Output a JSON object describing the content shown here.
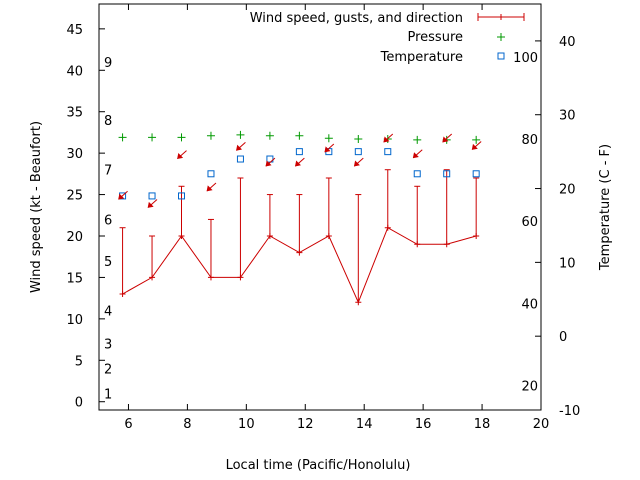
{
  "chart_data": {
    "type": "line",
    "xlabel": "Local time (Pacific/Honolulu)",
    "ylabel_left": "Wind speed (kt - Beaufort)",
    "ylabel_right": "Temperature (C - F)",
    "xlim": [
      5,
      20
    ],
    "xticks": [
      "6",
      "8",
      "10",
      "12",
      "14",
      "16",
      "18",
      "20"
    ],
    "ylim_left": [
      -1,
      48
    ],
    "yticks_left": [
      "0",
      "5",
      "10",
      "15",
      "20",
      "25",
      "30",
      "35",
      "40",
      "45"
    ],
    "ylim_right_c": [
      -10,
      45
    ],
    "yticks_right_c": [
      "-10",
      "0",
      "10",
      "20",
      "30",
      "40"
    ],
    "fahrenheit_labels": [
      {
        "label": "20",
        "c": -6.7
      },
      {
        "label": "40",
        "c": 4.4
      },
      {
        "label": "60",
        "c": 15.6
      },
      {
        "label": "80",
        "c": 26.7
      },
      {
        "label": "100",
        "c": 37.8
      }
    ],
    "beaufort_labels": [
      {
        "label": "1",
        "kt": 1
      },
      {
        "label": "2",
        "kt": 4
      },
      {
        "label": "3",
        "kt": 7
      },
      {
        "label": "4",
        "kt": 11
      },
      {
        "label": "5",
        "kt": 17
      },
      {
        "label": "6",
        "kt": 22
      },
      {
        "label": "7",
        "kt": 28
      },
      {
        "label": "8",
        "kt": 34
      },
      {
        "label": "9",
        "kt": 41
      }
    ],
    "legend": [
      {
        "name": "Wind speed, gusts, and direction",
        "color": "#cc0000",
        "marker": "errorbar"
      },
      {
        "name": "Pressure",
        "color": "#009900",
        "marker": "plus"
      },
      {
        "name": "Temperature",
        "color": "#0066cc",
        "marker": "square"
      }
    ],
    "legend_position": "top-right",
    "series": [
      {
        "name": "Wind speed, gusts, and direction",
        "color": "#cc0000",
        "points": [
          {
            "x": 5.8,
            "speed": 13,
            "gust": 21
          },
          {
            "x": 6.8,
            "speed": 15,
            "gust": 20
          },
          {
            "x": 7.8,
            "speed": 20,
            "gust": 26
          },
          {
            "x": 8.8,
            "speed": 15,
            "gust": 22
          },
          {
            "x": 9.8,
            "speed": 15,
            "gust": 27
          },
          {
            "x": 10.8,
            "speed": 20,
            "gust": 25
          },
          {
            "x": 11.8,
            "speed": 18,
            "gust": 25
          },
          {
            "x": 12.8,
            "speed": 20,
            "gust": 27
          },
          {
            "x": 13.8,
            "speed": 12,
            "gust": 25
          },
          {
            "x": 14.8,
            "speed": 21,
            "gust": 28
          },
          {
            "x": 15.8,
            "speed": 19,
            "gust": 26
          },
          {
            "x": 16.8,
            "speed": 19,
            "gust": 28
          },
          {
            "x": 17.8,
            "speed": 20,
            "gust": 27
          }
        ],
        "direction_arrows": [
          {
            "x": 5.8,
            "y": 24.8
          },
          {
            "x": 6.8,
            "y": 23.8
          },
          {
            "x": 7.8,
            "y": 29.7
          },
          {
            "x": 8.8,
            "y": 25.8
          },
          {
            "x": 9.8,
            "y": 30.7
          },
          {
            "x": 10.8,
            "y": 28.8
          },
          {
            "x": 11.8,
            "y": 28.8
          },
          {
            "x": 12.8,
            "y": 30.5
          },
          {
            "x": 13.8,
            "y": 28.8
          },
          {
            "x": 14.8,
            "y": 31.7
          },
          {
            "x": 15.8,
            "y": 29.8
          },
          {
            "x": 16.8,
            "y": 31.7
          },
          {
            "x": 17.8,
            "y": 30.8
          }
        ]
      },
      {
        "name": "Pressure",
        "color": "#009900",
        "x": [
          5.8,
          6.8,
          7.8,
          8.8,
          9.8,
          10.8,
          11.8,
          12.8,
          13.8,
          14.8,
          15.8,
          16.8,
          17.8
        ],
        "y": [
          31.9,
          31.9,
          31.9,
          32.1,
          32.2,
          32.1,
          32.1,
          31.8,
          31.7,
          31.7,
          31.6,
          31.6,
          31.6
        ]
      },
      {
        "name": "Temperature",
        "color": "#0066cc",
        "x": [
          5.8,
          6.8,
          7.8,
          8.8,
          9.8,
          10.8,
          11.8,
          12.8,
          13.8,
          14.8,
          15.8,
          16.8,
          17.8
        ],
        "y": [
          19,
          19,
          19,
          22,
          24,
          24,
          25,
          25,
          25,
          25,
          22,
          22,
          22
        ]
      }
    ]
  }
}
